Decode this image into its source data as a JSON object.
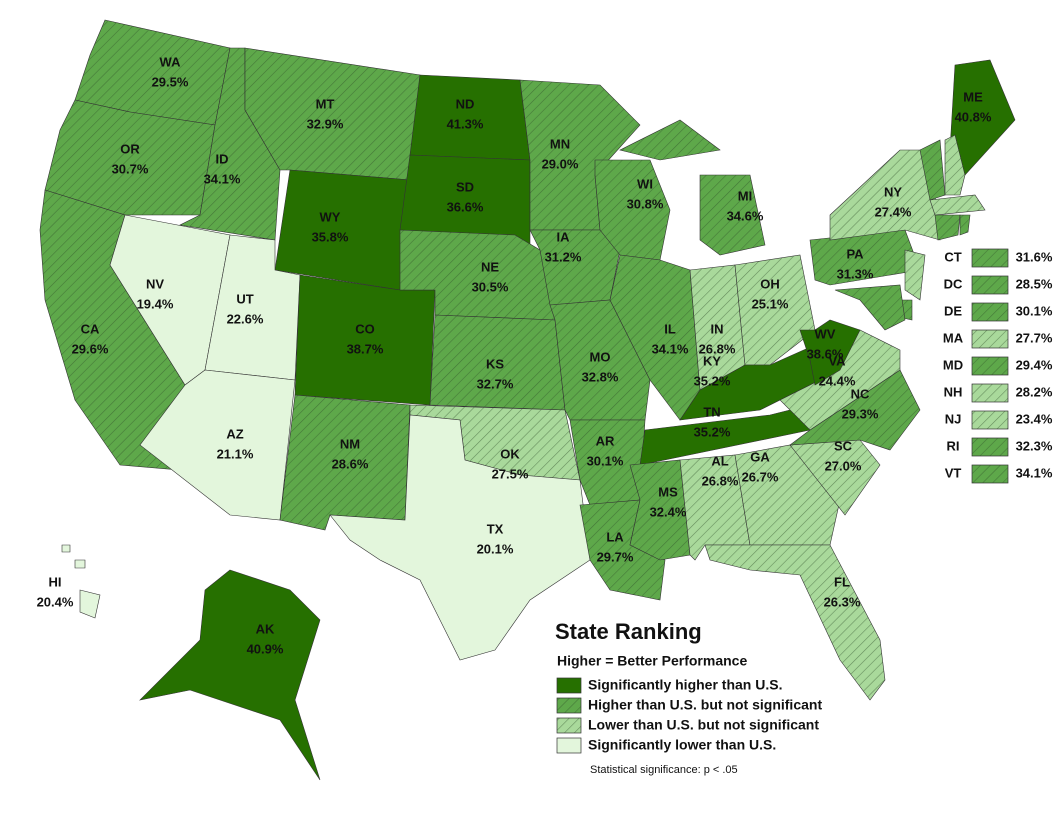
{
  "states": [
    {
      "abbr": "WA",
      "value": "29.5%",
      "level": 1
    },
    {
      "abbr": "OR",
      "value": "30.7%",
      "level": 1
    },
    {
      "abbr": "CA",
      "value": "29.6%",
      "level": 1
    },
    {
      "abbr": "NV",
      "value": "19.4%",
      "level": 3
    },
    {
      "abbr": "ID",
      "value": "34.1%",
      "level": 1
    },
    {
      "abbr": "MT",
      "value": "32.9%",
      "level": 1
    },
    {
      "abbr": "WY",
      "value": "35.8%",
      "level": 0
    },
    {
      "abbr": "UT",
      "value": "22.6%",
      "level": 3
    },
    {
      "abbr": "AZ",
      "value": "21.1%",
      "level": 3
    },
    {
      "abbr": "CO",
      "value": "38.7%",
      "level": 0
    },
    {
      "abbr": "NM",
      "value": "28.6%",
      "level": 1
    },
    {
      "abbr": "ND",
      "value": "41.3%",
      "level": 0
    },
    {
      "abbr": "SD",
      "value": "36.6%",
      "level": 0
    },
    {
      "abbr": "NE",
      "value": "30.5%",
      "level": 1
    },
    {
      "abbr": "KS",
      "value": "32.7%",
      "level": 1
    },
    {
      "abbr": "OK",
      "value": "27.5%",
      "level": 2
    },
    {
      "abbr": "TX",
      "value": "20.1%",
      "level": 3
    },
    {
      "abbr": "MN",
      "value": "29.0%",
      "level": 1
    },
    {
      "abbr": "IA",
      "value": "31.2%",
      "level": 1
    },
    {
      "abbr": "MO",
      "value": "32.8%",
      "level": 1
    },
    {
      "abbr": "AR",
      "value": "30.1%",
      "level": 1
    },
    {
      "abbr": "LA",
      "value": "29.7%",
      "level": 1
    },
    {
      "abbr": "WI",
      "value": "30.8%",
      "level": 1
    },
    {
      "abbr": "IL",
      "value": "34.1%",
      "level": 1
    },
    {
      "abbr": "MI",
      "value": "34.6%",
      "level": 1
    },
    {
      "abbr": "IN",
      "value": "26.8%",
      "level": 2
    },
    {
      "abbr": "OH",
      "value": "25.1%",
      "level": 2
    },
    {
      "abbr": "KY",
      "value": "35.2%",
      "level": 0
    },
    {
      "abbr": "TN",
      "value": "35.2%",
      "level": 0
    },
    {
      "abbr": "MS",
      "value": "32.4%",
      "level": 1
    },
    {
      "abbr": "AL",
      "value": "26.8%",
      "level": 2
    },
    {
      "abbr": "GA",
      "value": "26.7%",
      "level": 2
    },
    {
      "abbr": "FL",
      "value": "26.3%",
      "level": 2
    },
    {
      "abbr": "SC",
      "value": "27.0%",
      "level": 2
    },
    {
      "abbr": "NC",
      "value": "29.3%",
      "level": 1
    },
    {
      "abbr": "VA",
      "value": "24.4%",
      "level": 2
    },
    {
      "abbr": "WV",
      "value": "38.6%",
      "level": 0
    },
    {
      "abbr": "PA",
      "value": "31.3%",
      "level": 1
    },
    {
      "abbr": "NY",
      "value": "27.4%",
      "level": 2
    },
    {
      "abbr": "ME",
      "value": "40.8%",
      "level": 0
    },
    {
      "abbr": "AK",
      "value": "40.9%",
      "level": 0
    },
    {
      "abbr": "HI",
      "value": "20.4%",
      "level": 3
    }
  ],
  "small_states": [
    {
      "abbr": "CT",
      "value": "31.6%",
      "level": 1
    },
    {
      "abbr": "DC",
      "value": "28.5%",
      "level": 1
    },
    {
      "abbr": "DE",
      "value": "30.1%",
      "level": 1
    },
    {
      "abbr": "MA",
      "value": "27.7%",
      "level": 2
    },
    {
      "abbr": "MD",
      "value": "29.4%",
      "level": 1
    },
    {
      "abbr": "NH",
      "value": "28.2%",
      "level": 2
    },
    {
      "abbr": "NJ",
      "value": "23.4%",
      "level": 2
    },
    {
      "abbr": "RI",
      "value": "32.3%",
      "level": 1
    },
    {
      "abbr": "VT",
      "value": "34.1%",
      "level": 1
    }
  ],
  "legend": {
    "title": "State Ranking",
    "subtitle": "Higher = Better Performance",
    "items": [
      {
        "label": "Significantly higher than U.S.",
        "color": "#267000",
        "hatched": false
      },
      {
        "label": "Higher than U.S. but not significant",
        "color": "#5ea84a",
        "hatched": true
      },
      {
        "label": "Lower than U.S. but not significant",
        "color": "#a9d99b",
        "hatched": true
      },
      {
        "label": "Significantly lower than U.S.",
        "color": "#e3f6dc",
        "hatched": false
      }
    ],
    "note": "Statistical significance: p < .05"
  }
}
